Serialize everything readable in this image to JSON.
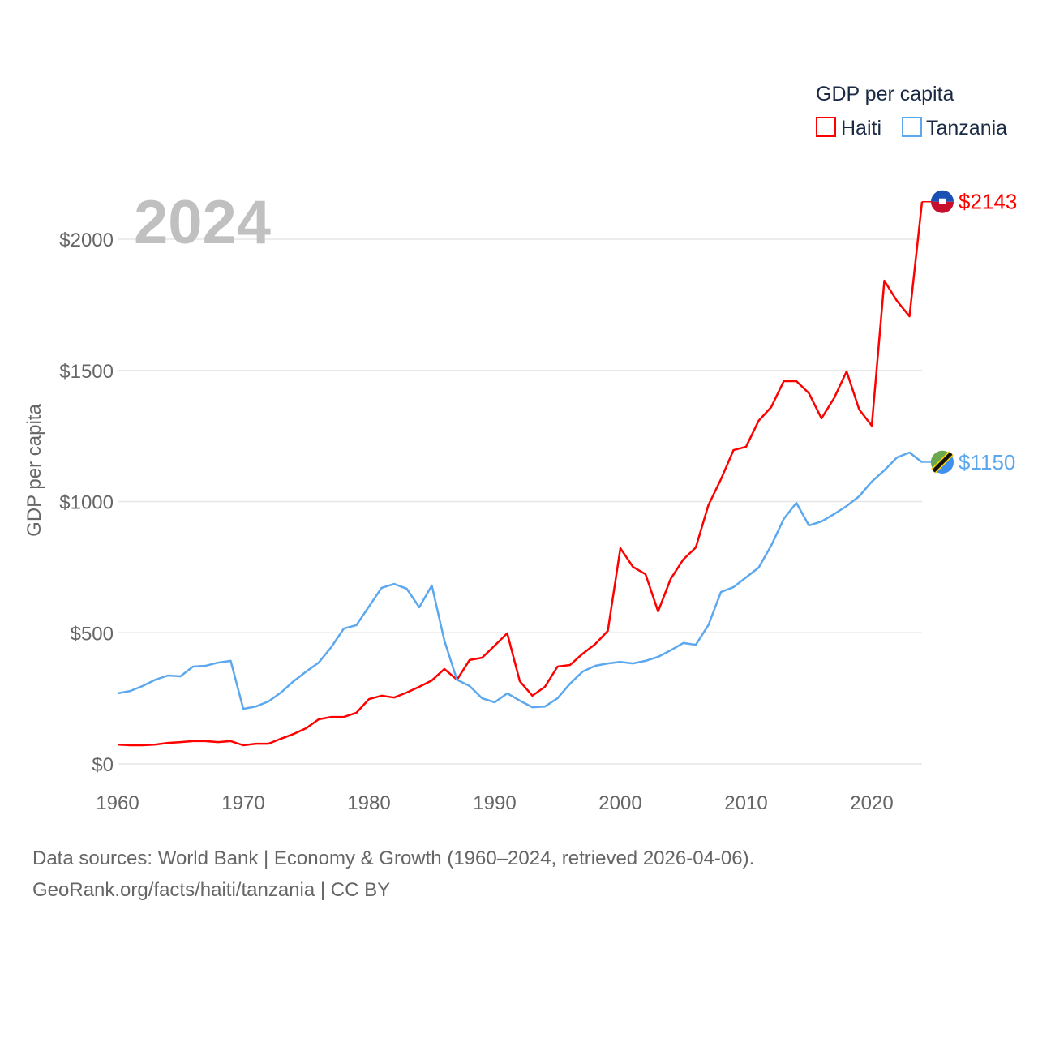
{
  "chart_data": {
    "type": "line",
    "ylabel": "GDP per capita",
    "xlabel": "",
    "year_label": "2024",
    "legend": {
      "title": "GDP per capita",
      "placement": "top-right"
    },
    "xlim": [
      1960,
      2024
    ],
    "ylim": [
      0,
      2200
    ],
    "x_ticks": [
      1960,
      1970,
      1980,
      1990,
      2000,
      2010,
      2020
    ],
    "y_ticks": [
      0,
      500,
      1000,
      1500,
      2000
    ],
    "y_tick_labels": [
      "$0",
      "$500",
      "$1000",
      "$1500",
      "$2000"
    ],
    "grid": true,
    "x": [
      1960,
      1961,
      1962,
      1963,
      1964,
      1965,
      1966,
      1967,
      1968,
      1969,
      1970,
      1971,
      1972,
      1973,
      1974,
      1975,
      1976,
      1977,
      1978,
      1979,
      1980,
      1981,
      1982,
      1983,
      1984,
      1985,
      1986,
      1987,
      1988,
      1989,
      1990,
      1991,
      1992,
      1993,
      1994,
      1995,
      1996,
      1997,
      1998,
      1999,
      2000,
      2001,
      2002,
      2003,
      2004,
      2005,
      2006,
      2007,
      2008,
      2009,
      2010,
      2011,
      2012,
      2013,
      2014,
      2015,
      2016,
      2017,
      2018,
      2019,
      2020,
      2021,
      2022,
      2023,
      2024
    ],
    "series": [
      {
        "name": "Haiti",
        "color": "#ff0000",
        "end_label": "$2143",
        "values": [
          74,
          71,
          71,
          74,
          80,
          83,
          87,
          87,
          83,
          87,
          71,
          77,
          77,
          96,
          114,
          136,
          170,
          179,
          179,
          195,
          247,
          260,
          253,
          272,
          294,
          318,
          362,
          321,
          396,
          405,
          451,
          498,
          315,
          260,
          294,
          371,
          377,
          420,
          457,
          507,
          822,
          751,
          723,
          581,
          705,
          779,
          825,
          986,
          1085,
          1196,
          1209,
          1308,
          1360,
          1459,
          1459,
          1413,
          1317,
          1394,
          1496,
          1351,
          1289,
          1842,
          1765,
          1706,
          2143
        ]
      },
      {
        "name": "Tanzania",
        "color": "#5ca8ee",
        "end_label": "$1150",
        "values": [
          269,
          278,
          297,
          321,
          337,
          334,
          371,
          374,
          386,
          393,
          210,
          219,
          238,
          272,
          315,
          352,
          386,
          445,
          516,
          529,
          600,
          671,
          686,
          668,
          597,
          680,
          470,
          321,
          297,
          250,
          235,
          269,
          241,
          216,
          219,
          250,
          306,
          352,
          374,
          383,
          389,
          383,
          393,
          408,
          433,
          461,
          454,
          529,
          655,
          674,
          711,
          748,
          832,
          934,
          995,
          909,
          924,
          952,
          983,
          1020,
          1076,
          1119,
          1168,
          1187,
          1150
        ]
      }
    ]
  },
  "footer": {
    "line1": "Data sources: World Bank | Economy & Growth (1960–2024, retrieved 2026-04-06).",
    "line2": "GeoRank.org/facts/haiti/tanzania | CC BY"
  }
}
